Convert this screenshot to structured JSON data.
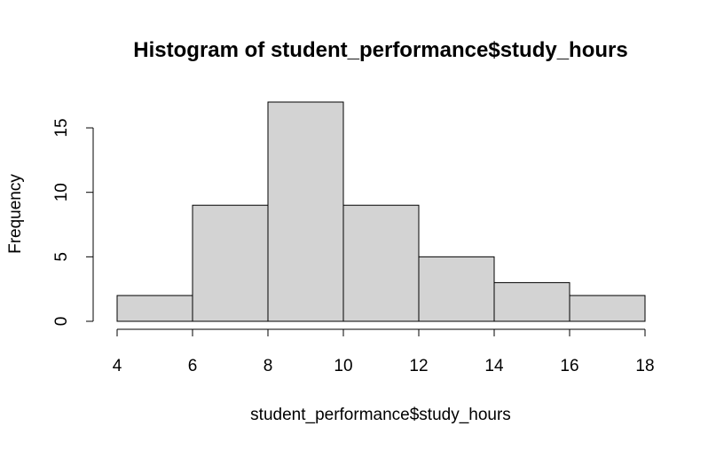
{
  "chart_data": {
    "type": "bar",
    "title": "Histogram of student_performance$study_hours",
    "xlabel": "student_performance$study_hours",
    "ylabel": "Frequency",
    "bins": [
      {
        "start": 4,
        "end": 6,
        "count": 2
      },
      {
        "start": 6,
        "end": 8,
        "count": 9
      },
      {
        "start": 8,
        "end": 10,
        "count": 17
      },
      {
        "start": 10,
        "end": 12,
        "count": 9
      },
      {
        "start": 12,
        "end": 14,
        "count": 5
      },
      {
        "start": 14,
        "end": 16,
        "count": 3
      },
      {
        "start": 16,
        "end": 18,
        "count": 2
      }
    ],
    "xticks": [
      4,
      6,
      8,
      10,
      12,
      14,
      16,
      18
    ],
    "yticks": [
      0,
      5,
      10,
      15
    ],
    "xlim": [
      4,
      18
    ],
    "ylim": [
      0,
      17
    ],
    "grid": false,
    "bar_color": "#d3d3d3"
  }
}
